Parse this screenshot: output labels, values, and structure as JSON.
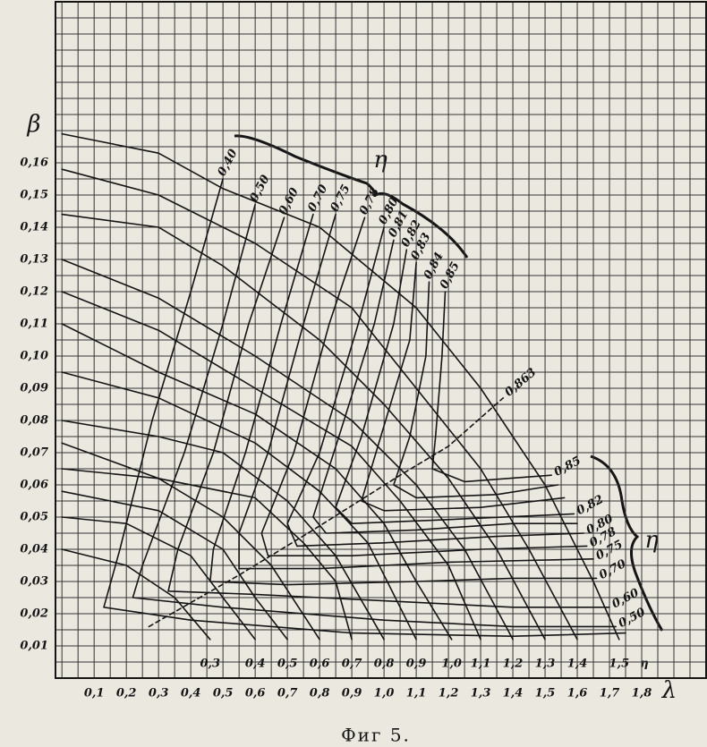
{
  "chart_data": {
    "type": "line",
    "caption": "Фиг 5.",
    "x_label": "λ",
    "y_label": "β",
    "eta_symbol": "η",
    "color": "#151515",
    "grid": true,
    "xlim": [
      -0.02,
      2.0
    ],
    "ylim": [
      0,
      0.21
    ],
    "xticks": [
      {
        "value": 0.1,
        "label": "0,1"
      },
      {
        "value": 0.2,
        "label": "0,2"
      },
      {
        "value": 0.3,
        "label": "0,3"
      },
      {
        "value": 0.4,
        "label": "0,4"
      },
      {
        "value": 0.5,
        "label": "0,5"
      },
      {
        "value": 0.6,
        "label": "0,6"
      },
      {
        "value": 0.7,
        "label": "0,7"
      },
      {
        "value": 0.8,
        "label": "0,8"
      },
      {
        "value": 0.9,
        "label": "0,9"
      },
      {
        "value": 1.0,
        "label": "1,0"
      },
      {
        "value": 1.1,
        "label": "1,1"
      },
      {
        "value": 1.2,
        "label": "1,2"
      },
      {
        "value": 1.3,
        "label": "1,3"
      },
      {
        "value": 1.4,
        "label": "1,4"
      },
      {
        "value": 1.5,
        "label": "1,5"
      },
      {
        "value": 1.6,
        "label": "1,6"
      },
      {
        "value": 1.7,
        "label": "1,7"
      },
      {
        "value": 1.8,
        "label": "1,8"
      }
    ],
    "yticks": [
      {
        "value": 0.01,
        "label": "0,01"
      },
      {
        "value": 0.02,
        "label": "0,02"
      },
      {
        "value": 0.03,
        "label": "0,03"
      },
      {
        "value": 0.04,
        "label": "0,04"
      },
      {
        "value": 0.05,
        "label": "0,05"
      },
      {
        "value": 0.06,
        "label": "0,06"
      },
      {
        "value": 0.07,
        "label": "0,07"
      },
      {
        "value": 0.08,
        "label": "0,08"
      },
      {
        "value": 0.09,
        "label": "0,09"
      },
      {
        "value": 0.1,
        "label": "0,10"
      },
      {
        "value": 0.11,
        "label": "0,11"
      },
      {
        "value": 0.12,
        "label": "0,12"
      },
      {
        "value": 0.13,
        "label": "0,13"
      },
      {
        "value": 0.14,
        "label": "0,14"
      },
      {
        "value": 0.15,
        "label": "0,15"
      },
      {
        "value": 0.16,
        "label": "0,16"
      }
    ],
    "series": [
      {
        "name": "1,5",
        "label_at": "end",
        "x": [
          0,
          0.3,
          0.5,
          0.8,
          1.1,
          1.3,
          1.5,
          1.65,
          1.73
        ],
        "values": [
          0.169,
          0.163,
          0.152,
          0.14,
          0.115,
          0.09,
          0.06,
          0.03,
          0.012
        ]
      },
      {
        "name": "1,4",
        "label_at": "end",
        "x": [
          0,
          0.3,
          0.6,
          0.9,
          1.1,
          1.3,
          1.45,
          1.6
        ],
        "values": [
          0.158,
          0.15,
          0.135,
          0.115,
          0.09,
          0.065,
          0.04,
          0.012
        ]
      },
      {
        "name": "1,3",
        "label_at": "end",
        "x": [
          0,
          0.3,
          0.5,
          0.8,
          1.0,
          1.2,
          1.35,
          1.5
        ],
        "values": [
          0.144,
          0.14,
          0.128,
          0.105,
          0.085,
          0.062,
          0.04,
          0.012
        ]
      },
      {
        "name": "1,2",
        "label_at": "end",
        "x": [
          0,
          0.3,
          0.6,
          0.9,
          1.1,
          1.25,
          1.4
        ],
        "values": [
          0.13,
          0.118,
          0.1,
          0.08,
          0.06,
          0.04,
          0.012
        ]
      },
      {
        "name": "1,1",
        "label_at": "end",
        "x": [
          0,
          0.3,
          0.6,
          0.9,
          1.05,
          1.2,
          1.3
        ],
        "values": [
          0.12,
          0.108,
          0.09,
          0.072,
          0.055,
          0.035,
          0.012
        ]
      },
      {
        "name": "1,0",
        "label_at": "end",
        "x": [
          0,
          0.3,
          0.6,
          0.85,
          1.0,
          1.1,
          1.21
        ],
        "values": [
          0.11,
          0.095,
          0.082,
          0.065,
          0.048,
          0.03,
          0.012
        ]
      },
      {
        "name": "0,9",
        "label_at": "end",
        "x": [
          0,
          0.3,
          0.6,
          0.8,
          0.95,
          1.1
        ],
        "values": [
          0.095,
          0.087,
          0.073,
          0.058,
          0.042,
          0.012
        ]
      },
      {
        "name": "0,8",
        "label_at": "end",
        "x": [
          0,
          0.3,
          0.5,
          0.7,
          0.85,
          1.0
        ],
        "values": [
          0.08,
          0.075,
          0.07,
          0.055,
          0.038,
          0.012
        ]
      },
      {
        "name": "0,7",
        "label_at": "end",
        "x": [
          0,
          0.3,
          0.6,
          0.75,
          0.85,
          0.9
        ],
        "values": [
          0.073,
          0.062,
          0.056,
          0.042,
          0.03,
          0.012
        ]
      },
      {
        "name": "0,6",
        "label_at": "end",
        "x": [
          0,
          0.3,
          0.5,
          0.65,
          0.8
        ],
        "values": [
          0.065,
          0.062,
          0.05,
          0.035,
          0.012
        ]
      },
      {
        "name": "0,5",
        "label_at": "end",
        "x": [
          0,
          0.3,
          0.5,
          0.6,
          0.7
        ],
        "values": [
          0.058,
          0.052,
          0.04,
          0.025,
          0.012
        ]
      },
      {
        "name": "0,4",
        "label_at": "end",
        "x": [
          0,
          0.2,
          0.4,
          0.5,
          0.6
        ],
        "values": [
          0.05,
          0.048,
          0.038,
          0.025,
          0.012
        ]
      },
      {
        "name": "0,3",
        "label_at": "end",
        "x": [
          0,
          0.2,
          0.35,
          0.46
        ],
        "values": [
          0.04,
          0.035,
          0.025,
          0.012
        ]
      },
      {
        "name": "0,40",
        "label_at": "start",
        "x": [
          0.5,
          0.4,
          0.28,
          0.18,
          0.13,
          0.4,
          0.9,
          1.4,
          1.75
        ],
        "values": [
          0.155,
          0.12,
          0.08,
          0.04,
          0.022,
          0.018,
          0.014,
          0.013,
          0.014
        ]
      },
      {
        "name": "0,50",
        "label_at": "both",
        "x": [
          0.6,
          0.5,
          0.38,
          0.25,
          0.22,
          0.5,
          1.0,
          1.4,
          1.72
        ],
        "values": [
          0.147,
          0.11,
          0.07,
          0.035,
          0.025,
          0.022,
          0.018,
          0.016,
          0.016
        ]
      },
      {
        "name": "0,60",
        "label_at": "both",
        "x": [
          0.69,
          0.58,
          0.47,
          0.36,
          0.33,
          0.6,
          1.0,
          1.4,
          1.7
        ],
        "values": [
          0.143,
          0.11,
          0.07,
          0.04,
          0.027,
          0.026,
          0.024,
          0.022,
          0.022
        ]
      },
      {
        "name": "0,70",
        "label_at": "both",
        "x": [
          0.78,
          0.68,
          0.57,
          0.47,
          0.46,
          0.7,
          1.1,
          1.4,
          1.66
        ],
        "values": [
          0.144,
          0.11,
          0.07,
          0.04,
          0.03,
          0.029,
          0.03,
          0.031,
          0.031
        ]
      },
      {
        "name": "0,75",
        "label_at": "both",
        "x": [
          0.85,
          0.75,
          0.64,
          0.55,
          0.55,
          0.8,
          1.2,
          1.65
        ],
        "values": [
          0.144,
          0.11,
          0.07,
          0.045,
          0.034,
          0.034,
          0.036,
          0.037
        ]
      },
      {
        "name": "0,78",
        "label_at": "both",
        "x": [
          0.94,
          0.83,
          0.72,
          0.62,
          0.64,
          0.9,
          1.3,
          1.63
        ],
        "values": [
          0.143,
          0.11,
          0.07,
          0.045,
          0.038,
          0.038,
          0.04,
          0.041
        ]
      },
      {
        "name": "0,80",
        "label_at": "both",
        "x": [
          1.0,
          0.92,
          0.8,
          0.7,
          0.73,
          1.0,
          1.35,
          1.62
        ],
        "values": [
          0.14,
          0.11,
          0.07,
          0.048,
          0.041,
          0.042,
          0.044,
          0.045
        ]
      },
      {
        "name": "0,81",
        "label_at": "start",
        "x": [
          1.03,
          0.97,
          0.86,
          0.78,
          0.82,
          1.1,
          1.4,
          1.6
        ],
        "values": [
          0.136,
          0.11,
          0.075,
          0.05,
          0.045,
          0.046,
          0.048,
          0.048
        ]
      },
      {
        "name": "0,82",
        "label_at": "both",
        "x": [
          1.07,
          1.03,
          0.93,
          0.85,
          0.9,
          1.15,
          1.59
        ],
        "values": [
          0.133,
          0.11,
          0.075,
          0.053,
          0.048,
          0.049,
          0.051
        ]
      },
      {
        "name": "0,83",
        "label_at": "start",
        "x": [
          1.1,
          1.08,
          0.99,
          0.93,
          1.0,
          1.3,
          1.56
        ],
        "values": [
          0.129,
          0.105,
          0.075,
          0.055,
          0.052,
          0.053,
          0.056
        ]
      },
      {
        "name": "0,84",
        "label_at": "start",
        "x": [
          1.14,
          1.13,
          1.08,
          1.03,
          1.1,
          1.35,
          1.54
        ],
        "values": [
          0.123,
          0.1,
          0.075,
          0.06,
          0.056,
          0.057,
          0.06
        ]
      },
      {
        "name": "0,85",
        "label_at": "both",
        "x": [
          1.19,
          1.18,
          1.16,
          1.15,
          1.25,
          1.52
        ],
        "values": [
          0.12,
          0.1,
          0.075,
          0.065,
          0.061,
          0.063
        ]
      },
      {
        "name": "0,863",
        "label_at": "end",
        "dash": true,
        "x": [
          0.27,
          0.55,
          0.78,
          1.05,
          1.2,
          1.37
        ],
        "values": [
          0.016,
          0.032,
          0.046,
          0.063,
          0.072,
          0.087
        ]
      }
    ]
  }
}
